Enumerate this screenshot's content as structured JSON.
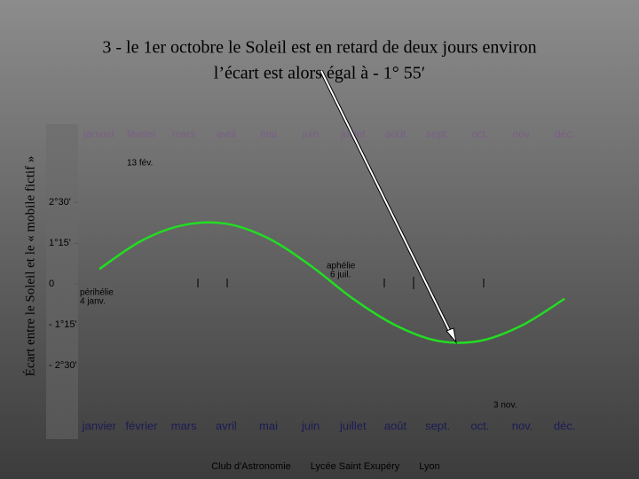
{
  "chart_data": {
    "type": "line",
    "title": [
      "3 - le 1er octobre le Soleil est en retard de deux jours environ",
      "l’écart est alors égal à - 1° 55′"
    ],
    "y_label": "Écart entre le Soleil et le « mobile fictif »",
    "categories": [
      "janvier",
      "février",
      "mars",
      "avril",
      "mai",
      "juin",
      "juillet",
      "août",
      "sept.",
      "oct.",
      "nov.",
      "déc."
    ],
    "top_categories": [
      "janvier",
      "février",
      "mars",
      "avril",
      "mai",
      "juin",
      "juillet",
      "août",
      "sept.",
      "oct.",
      "nov.",
      "déc."
    ],
    "series": [
      {
        "color": "#22dd22",
        "values": [
          0.46,
          1.33,
          1.81,
          1.85,
          1.4,
          0.56,
          -0.45,
          -1.26,
          -1.74,
          -1.74,
          -1.26,
          -0.45
        ]
      }
    ],
    "ylim": [
      -4.75,
      4.9
    ],
    "yticks": [
      {
        "value": 2.5,
        "label": "2°30'"
      },
      {
        "value": 1.25,
        "label": "1°15'"
      },
      0,
      {
        "value": -1.25,
        "label": "- 1°15'"
      },
      {
        "value": -2.5,
        "label": "- 2°30'"
      }
    ],
    "annotations": [
      "13 fév.",
      "aphélie",
      "6 juil.",
      "périhélie",
      "4 janv.",
      "3 nov."
    ]
  },
  "footer": [
    "Club d'Astronomie",
    "Lycée Saint Exupéry",
    "Lyon"
  ]
}
